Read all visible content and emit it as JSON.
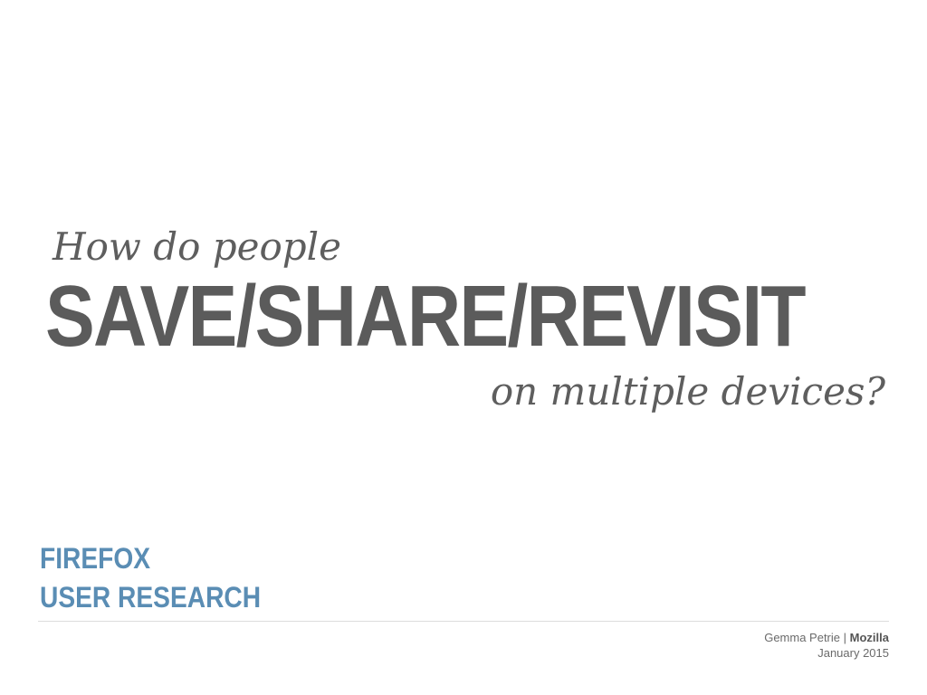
{
  "slide": {
    "intro": "How do people",
    "headline": "SAVE/SHARE/REVISIT",
    "outro": "on multiple devices?"
  },
  "brand": {
    "line1": "FIREFOX",
    "line2": "USER RESEARCH"
  },
  "credits": {
    "author": "Gemma Petrie",
    "separator": "|",
    "organization": "Mozilla",
    "date": "January 2015"
  },
  "colors": {
    "text_gray": "#5b5b5b",
    "brand_blue": "#5a8db4",
    "divider": "#dcdcdc"
  }
}
